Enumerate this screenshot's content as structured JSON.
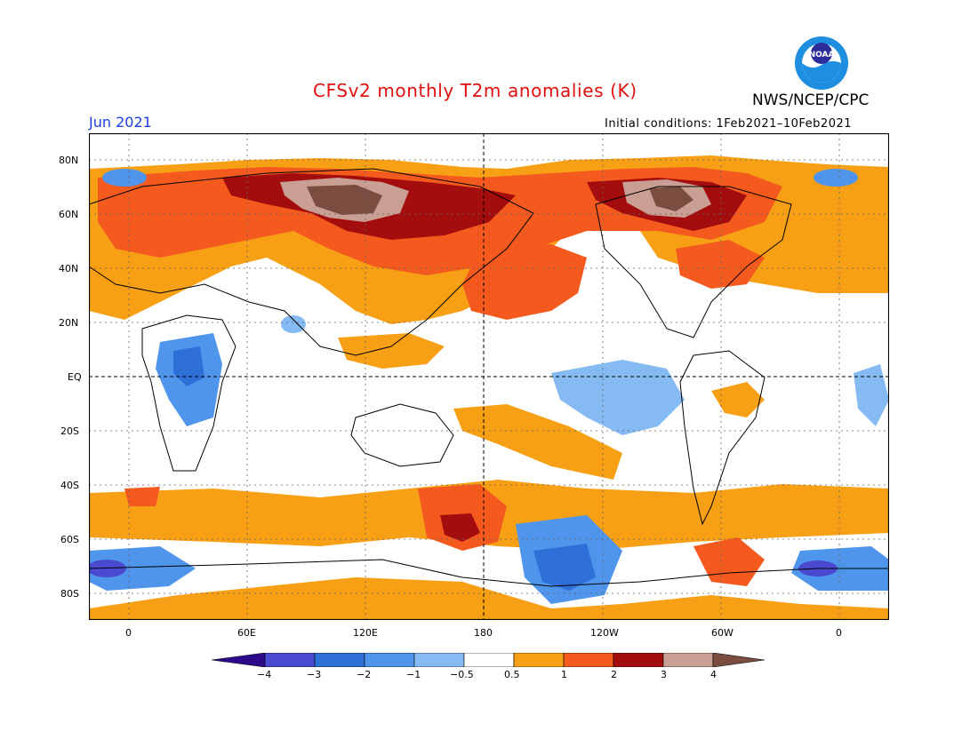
{
  "header": {
    "title": "CFSv2 monthly T2m anomalies (K)",
    "month": "Jun 2021",
    "initial_conditions": "Initial conditions: 1Feb2021–10Feb2021",
    "org": "NWS/NCEP/CPC",
    "logo_text": "NOAA"
  },
  "map": {
    "lat_labels": [
      "80N",
      "60N",
      "40N",
      "20N",
      "EQ",
      "20S",
      "40S",
      "60S",
      "80S"
    ],
    "lon_labels": [
      "0",
      "60E",
      "120E",
      "180",
      "120W",
      "60W",
      "0"
    ],
    "colors": {
      "neg4": "#2c0a8a",
      "neg3": "#4a4ad0",
      "neg2": "#2e6fd8",
      "neg1": "#4f95ec",
      "neg05": "#85bbf2",
      "zero": "#ffffff",
      "pos05": "#f7a015",
      "pos1": "#f45a1e",
      "pos2": "#e02610",
      "pos3": "#a30d0d",
      "pos4": "#c99f93",
      "pos5": "#7a4d40"
    }
  },
  "legend": {
    "labels": [
      "−4",
      "−3",
      "−2",
      "−1",
      "−0.5",
      "0.5",
      "1",
      "2",
      "3",
      "4"
    ],
    "colors": [
      "#2c0a8a",
      "#4a4ad0",
      "#2e6fd8",
      "#4f95ec",
      "#85bbf2",
      "#ffffff",
      "#f7a015",
      "#f45a1e",
      "#e02610",
      "#a30d0d",
      "#c99f93",
      "#7a4d40"
    ]
  }
}
